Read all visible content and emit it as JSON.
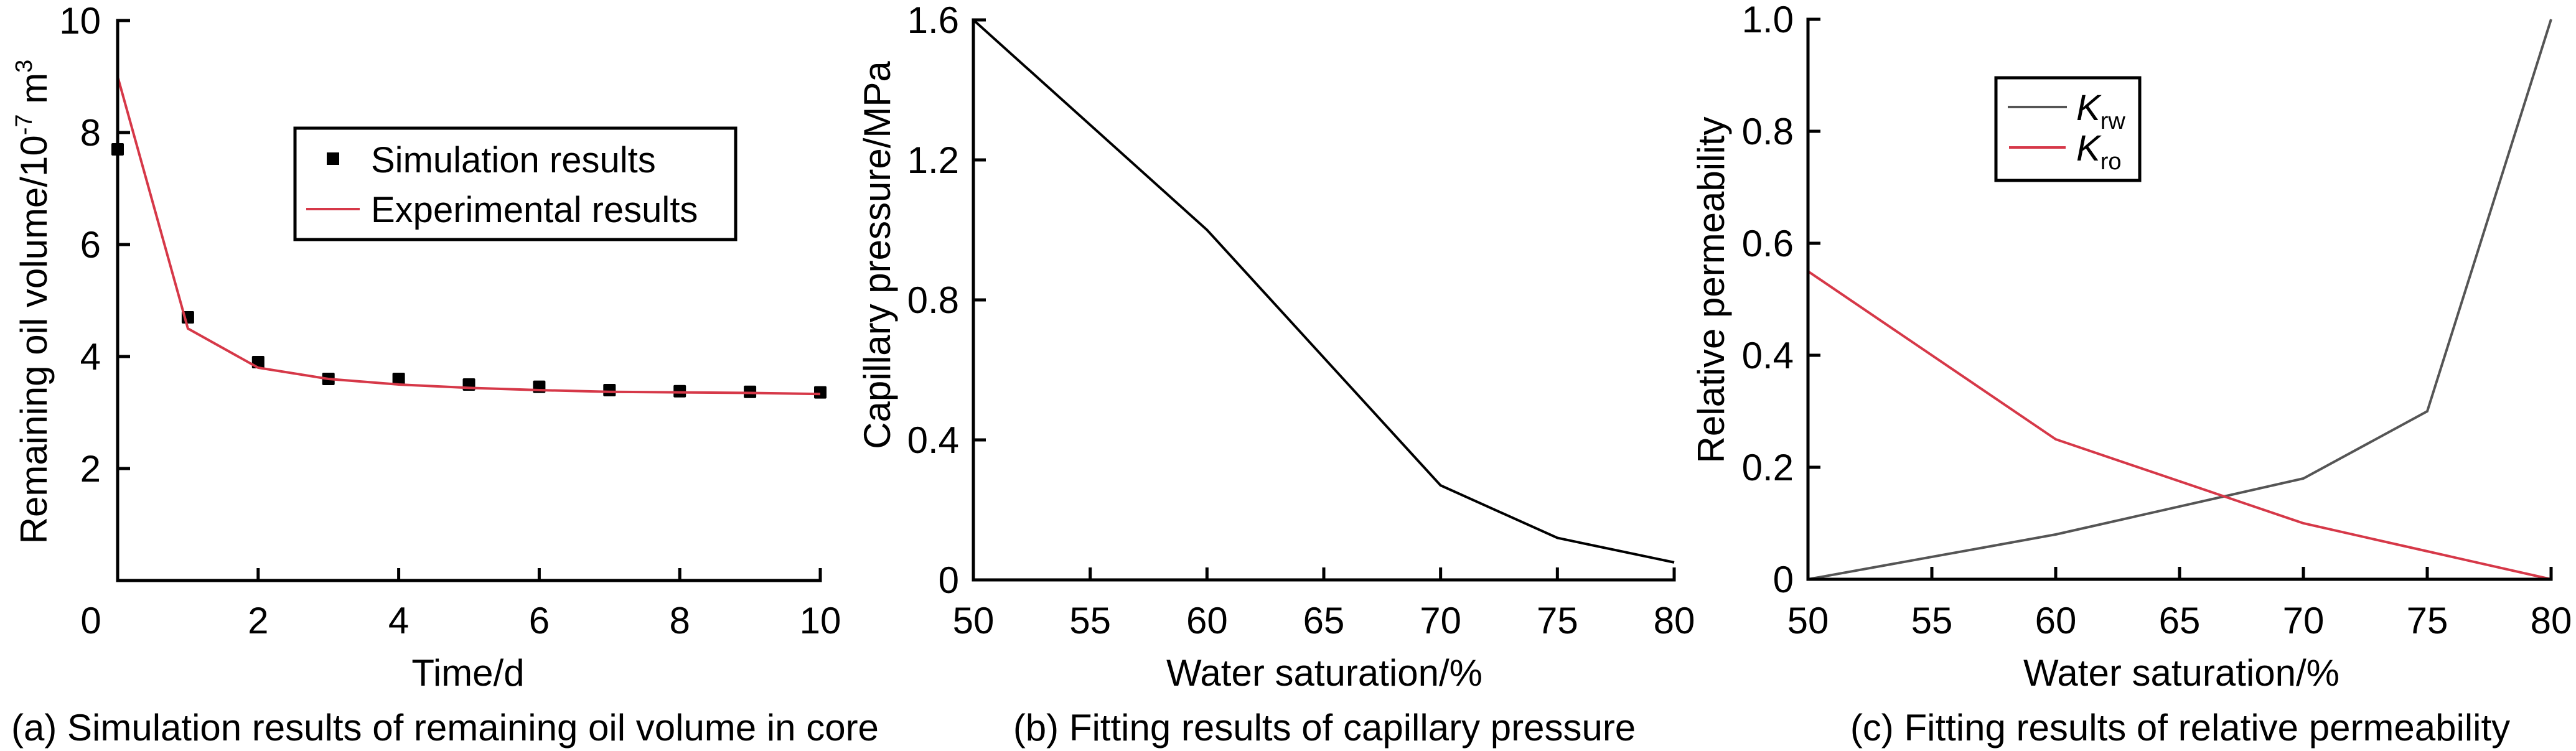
{
  "colors": {
    "axis": "#000000",
    "experimental": "#d63848",
    "krw": "#555555",
    "kro": "#d63848",
    "marker": "#000000"
  },
  "chart_data": [
    {
      "id": "a",
      "type": "line",
      "caption": "(a) Simulation results of remaining oil volume in core",
      "xlabel": "Time/d",
      "ylabel": "Remaining oil volume/10-7 m3",
      "ylabel_parts": {
        "base": "Remaining oil volume/10",
        "exp1": "-7",
        "mid": " m",
        "exp2": "3"
      },
      "xlim": [
        0,
        10
      ],
      "ylim": [
        0,
        10
      ],
      "xticks": [
        0,
        2,
        4,
        6,
        8,
        10
      ],
      "xtick_labels": [
        "0",
        "2",
        "4",
        "6",
        "8",
        "10"
      ],
      "yticks": [
        2,
        4,
        6,
        8,
        10
      ],
      "ytick_labels": [
        "2",
        "4",
        "6",
        "8",
        "10"
      ],
      "grid": false,
      "legend": {
        "position": "top-right",
        "entries": [
          "Simulation results",
          "Experimental results"
        ]
      },
      "series": [
        {
          "name": "Simulation results",
          "style": "scatter",
          "x": [
            0,
            1,
            2,
            3,
            4,
            5,
            6,
            7,
            8,
            9,
            10
          ],
          "y": [
            7.7,
            4.7,
            3.9,
            3.6,
            3.6,
            3.5,
            3.46,
            3.4,
            3.38,
            3.37,
            3.36
          ]
        },
        {
          "name": "Experimental results",
          "style": "line",
          "x": [
            0,
            1,
            2,
            3,
            4,
            5,
            6,
            7,
            8,
            9,
            10
          ],
          "y": [
            9.0,
            4.5,
            3.8,
            3.6,
            3.5,
            3.44,
            3.4,
            3.37,
            3.36,
            3.35,
            3.33
          ]
        }
      ]
    },
    {
      "id": "b",
      "type": "line",
      "caption": "(b) Fitting results of capillary pressure",
      "xlabel": "Water saturation/%",
      "ylabel": "Capillary pressure/MPa",
      "xlim": [
        50,
        80
      ],
      "ylim": [
        0,
        1.6
      ],
      "xticks": [
        50,
        55,
        60,
        65,
        70,
        75,
        80
      ],
      "xtick_labels": [
        "50",
        "55",
        "60",
        "65",
        "70",
        "75",
        "80"
      ],
      "yticks": [
        0,
        0.4,
        0.8,
        1.2,
        1.6
      ],
      "ytick_labels": [
        "0",
        "0.4",
        "0.8",
        "1.2",
        "1.6"
      ],
      "grid": false,
      "series": [
        {
          "name": "Capillary pressure",
          "style": "line",
          "x": [
            50,
            60,
            70,
            75,
            80
          ],
          "y": [
            1.6,
            1.0,
            0.27,
            0.12,
            0.05
          ]
        }
      ]
    },
    {
      "id": "c",
      "type": "line",
      "caption": "(c) Fitting results of relative permeability",
      "xlabel": "Water saturation/%",
      "ylabel": "Relative permeability",
      "xlim": [
        50,
        80
      ],
      "ylim": [
        0,
        1.0
      ],
      "xticks": [
        50,
        55,
        60,
        65,
        70,
        75,
        80
      ],
      "xtick_labels": [
        "50",
        "55",
        "60",
        "65",
        "70",
        "75",
        "80"
      ],
      "yticks": [
        0,
        0.2,
        0.4,
        0.6,
        0.8,
        1.0
      ],
      "ytick_labels": [
        "0",
        "0.2",
        "0.4",
        "0.6",
        "0.8",
        "1.0"
      ],
      "grid": false,
      "legend": {
        "position": "top-left",
        "entries": [
          "Krw",
          "Kro"
        ]
      },
      "legend_parts": [
        {
          "main": "K",
          "sub": "rw"
        },
        {
          "main": "K",
          "sub": "ro"
        }
      ],
      "series": [
        {
          "name": "Krw",
          "style": "line",
          "x": [
            50,
            60,
            70,
            75,
            80
          ],
          "y": [
            0,
            0.08,
            0.18,
            0.3,
            1.0
          ]
        },
        {
          "name": "Kro",
          "style": "line",
          "x": [
            50,
            60,
            70,
            75,
            80
          ],
          "y": [
            0.55,
            0.25,
            0.1,
            0.05,
            0
          ]
        }
      ]
    }
  ]
}
